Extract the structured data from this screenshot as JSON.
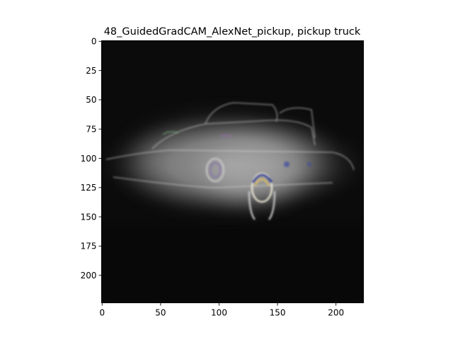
{
  "figure": {
    "title": "48_GuidedGradCAM_AlexNet_pickup, pickup truck"
  },
  "image_panel": {
    "content": "guided-gradcam-saliency-map",
    "x_range": [
      0,
      224
    ],
    "y_range": [
      0,
      224
    ],
    "x_ticks": [
      0,
      50,
      100,
      150,
      200
    ],
    "y_ticks": [
      0,
      25,
      50,
      75,
      100,
      125,
      150,
      175,
      200
    ]
  }
}
